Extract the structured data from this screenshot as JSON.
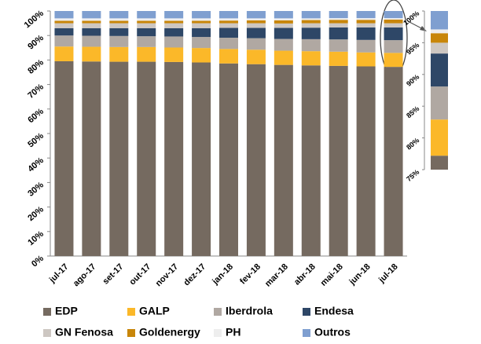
{
  "chart_data": {
    "type": "stacked_bar",
    "categories": [
      "jul-17",
      "ago-17",
      "set-17",
      "out-17",
      "nov-17",
      "dez-17",
      "jan-18",
      "fev-18",
      "mar-18",
      "abr-18",
      "mai-18",
      "jun-18",
      "jul-18"
    ],
    "series": [
      {
        "name": "EDP",
        "color": "#756a60",
        "values": [
          79.5,
          79.4,
          79.3,
          79.3,
          79.2,
          79.0,
          78.6,
          78.3,
          78.0,
          77.8,
          77.6,
          77.4,
          77.2
        ]
      },
      {
        "name": "GALP",
        "color": "#fbb829",
        "values": [
          6,
          6,
          6,
          6,
          5.9,
          5.9,
          5.9,
          5.9,
          5.8,
          5.8,
          5.8,
          5.7,
          5.7
        ]
      },
      {
        "name": "Iberdrola",
        "color": "#b0a8a2",
        "values": [
          4.5,
          4.5,
          4.5,
          4.4,
          4.5,
          4.5,
          4.6,
          4.7,
          4.8,
          4.9,
          5.0,
          5.1,
          5.2
        ]
      },
      {
        "name": "Endesa",
        "color": "#2e4767",
        "values": [
          3,
          3.1,
          3.2,
          3.3,
          3.4,
          3.6,
          4.0,
          4.2,
          4.5,
          4.7,
          4.9,
          5.1,
          5.2
        ]
      },
      {
        "name": "GN Fenosa",
        "color": "#cdc7c2",
        "values": [
          2,
          2,
          2,
          2,
          2,
          2,
          1.9,
          1.9,
          1.8,
          1.8,
          1.7,
          1.7,
          1.7
        ]
      },
      {
        "name": "Goldenergy",
        "color": "#c8860a",
        "values": [
          1,
          1,
          1,
          1,
          1,
          1,
          1.1,
          1.2,
          1.3,
          1.3,
          1.4,
          1.4,
          1.5
        ]
      },
      {
        "name": "PH",
        "color": "#eeeeee",
        "values": [
          1,
          1,
          1,
          1,
          1,
          1,
          0.9,
          0.8,
          0.8,
          0.7,
          0.7,
          0.7,
          0.6
        ]
      },
      {
        "name": "Outros",
        "color": "#7f9fd0",
        "values": [
          3,
          3,
          3,
          3,
          3,
          3,
          3,
          3,
          3,
          3,
          2.9,
          2.9,
          2.9
        ]
      }
    ],
    "ylim": [
      0,
      100
    ],
    "yticks": [
      {
        "value": 0,
        "label": "0%"
      },
      {
        "value": 10,
        "label": "10%"
      },
      {
        "value": 20,
        "label": "20%"
      },
      {
        "value": 30,
        "label": "30%"
      },
      {
        "value": 40,
        "label": "40%"
      },
      {
        "value": 50,
        "label": "50%"
      },
      {
        "value": 60,
        "label": "60%"
      },
      {
        "value": 70,
        "label": "70%"
      },
      {
        "value": 80,
        "label": "80%"
      },
      {
        "value": 90,
        "label": "90%"
      },
      {
        "value": 100,
        "label": "100%"
      }
    ],
    "grid": false,
    "legend": "bottom",
    "inset": {
      "ylim": [
        75,
        100
      ],
      "yticks": [
        {
          "value": 75,
          "label": "75%"
        },
        {
          "value": 80,
          "label": "80%"
        },
        {
          "value": 85,
          "label": "85%"
        },
        {
          "value": 90,
          "label": "90%"
        },
        {
          "value": 95,
          "label": "95%"
        },
        {
          "value": 100,
          "label": "100%"
        }
      ]
    }
  }
}
